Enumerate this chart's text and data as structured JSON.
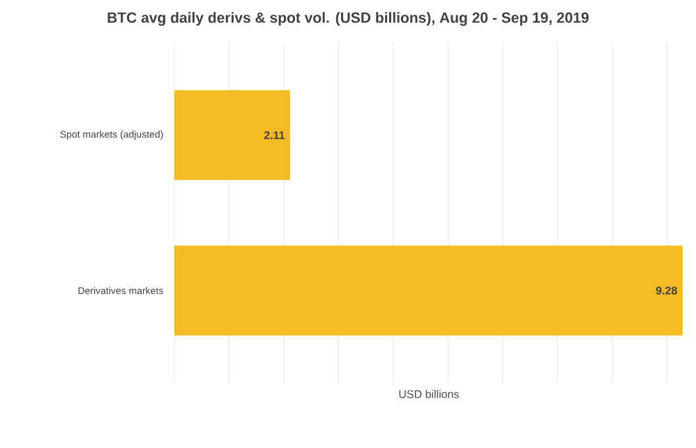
{
  "chart_data": {
    "type": "bar",
    "orientation": "horizontal",
    "title": "BTC avg daily derivs & spot vol. (USD billions), Aug 20 - Sep 19, 2019",
    "xlabel": "USD billions",
    "categories": [
      "Spot markets (adjusted)",
      "Derivatives markets"
    ],
    "values": [
      2.11,
      9.28
    ],
    "color": "#f5bb24",
    "data_labels": true,
    "xlim": [
      0,
      9.3
    ],
    "xticks": [
      {
        "value": 0,
        "label": null
      },
      {
        "value": 1,
        "label": null
      },
      {
        "value": 2,
        "label": null
      },
      {
        "value": 3,
        "label": null
      },
      {
        "value": 4,
        "label": null
      },
      {
        "value": 5,
        "label": null
      },
      {
        "value": 6,
        "label": null
      },
      {
        "value": 7,
        "label": null
      },
      {
        "value": 8,
        "label": null
      },
      {
        "value": 9,
        "label": null
      }
    ],
    "grid": "x"
  }
}
